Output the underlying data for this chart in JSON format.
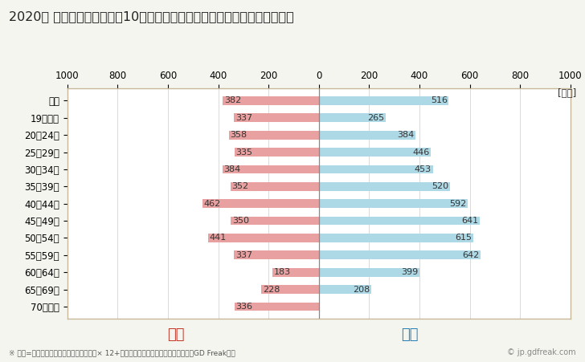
{
  "title": "2020年 民間企業（従業者数10人以上）フルタイム労働者の男女別平均年収",
  "ylabel_unit": "[万円]",
  "categories": [
    "全体",
    "19歳以下",
    "20～24歳",
    "25～29歳",
    "30～34歳",
    "35～39歳",
    "40～44歳",
    "45～49歳",
    "50～54歳",
    "55～59歳",
    "60～64歳",
    "65～69歳",
    "70歳以上"
  ],
  "female_values": [
    382,
    337,
    358,
    335,
    384,
    352,
    462,
    350,
    441,
    337,
    183,
    228,
    336
  ],
  "male_values": [
    516,
    265,
    384,
    446,
    453,
    520,
    592,
    641,
    615,
    642,
    399,
    208,
    0
  ],
  "female_color": "#e8a0a0",
  "male_color": "#add8e6",
  "female_label_color": "#c0392b",
  "male_label_color": "#2980b9",
  "female_legend": "女性",
  "male_legend": "男性",
  "xlim": [
    -1000,
    1000
  ],
  "xticks": [
    -1000,
    -800,
    -600,
    -400,
    -200,
    0,
    200,
    400,
    600,
    800,
    1000
  ],
  "xticklabels": [
    "1000",
    "800",
    "600",
    "400",
    "200",
    "0",
    "200",
    "400",
    "600",
    "800",
    "1000"
  ],
  "background_color": "#f5f5f0",
  "plot_bg_color": "#ffffff",
  "footnote": "※ 年収=「きまって支給する現金給与額」× 12+「年間賞与その他特別給与額」としてGD Freak推計",
  "watermark": "© jp.gdfreak.com",
  "border_color": "#c8b89a",
  "title_fontsize": 11.5,
  "tick_fontsize": 8.5,
  "label_fontsize": 8,
  "legend_fontsize": 13
}
